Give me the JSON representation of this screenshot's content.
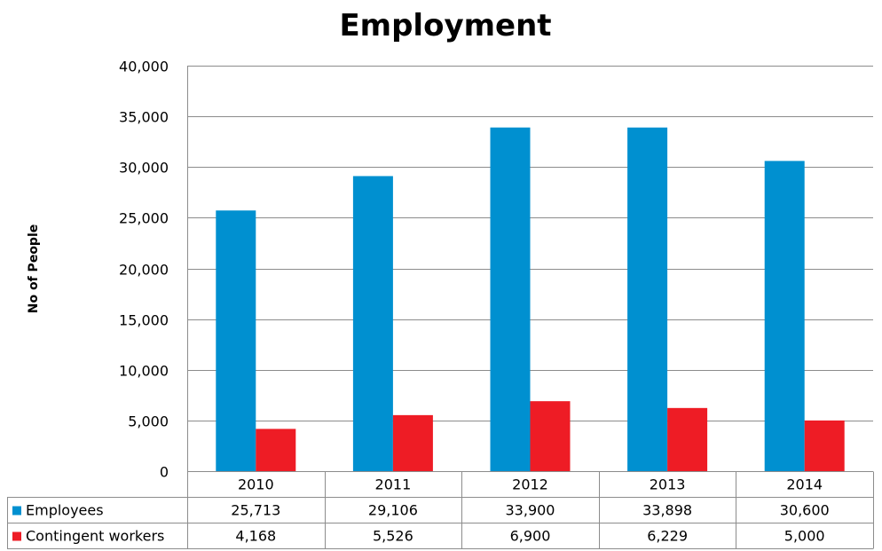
{
  "chart_data": {
    "type": "bar",
    "title": "Employment",
    "ylabel": "No of People",
    "xlabel": "",
    "categories": [
      "2010",
      "2011",
      "2012",
      "2013",
      "2014"
    ],
    "series": [
      {
        "name": "Employees",
        "color": "#0090d0",
        "values": [
          25713,
          29106,
          33900,
          33898,
          30600
        ],
        "labels": [
          "25,713",
          "29,106",
          "33,900",
          "33,898",
          "30,600"
        ]
      },
      {
        "name": "Contingent workers",
        "color": "#ee1c25",
        "values": [
          4168,
          5526,
          6900,
          6229,
          5000
        ],
        "labels": [
          "4,168",
          "5,526",
          "6,900",
          "6,229",
          "5,000"
        ]
      }
    ],
    "ylim": [
      0,
      40000
    ],
    "yticks": [
      0,
      5000,
      10000,
      15000,
      20000,
      25000,
      30000,
      35000,
      40000
    ],
    "ytick_labels": [
      "0",
      "5,000",
      "10,000",
      "15,000",
      "20,000",
      "25,000",
      "30,000",
      "35,000",
      "40,000"
    ],
    "grid": true,
    "legend": "data-table"
  }
}
